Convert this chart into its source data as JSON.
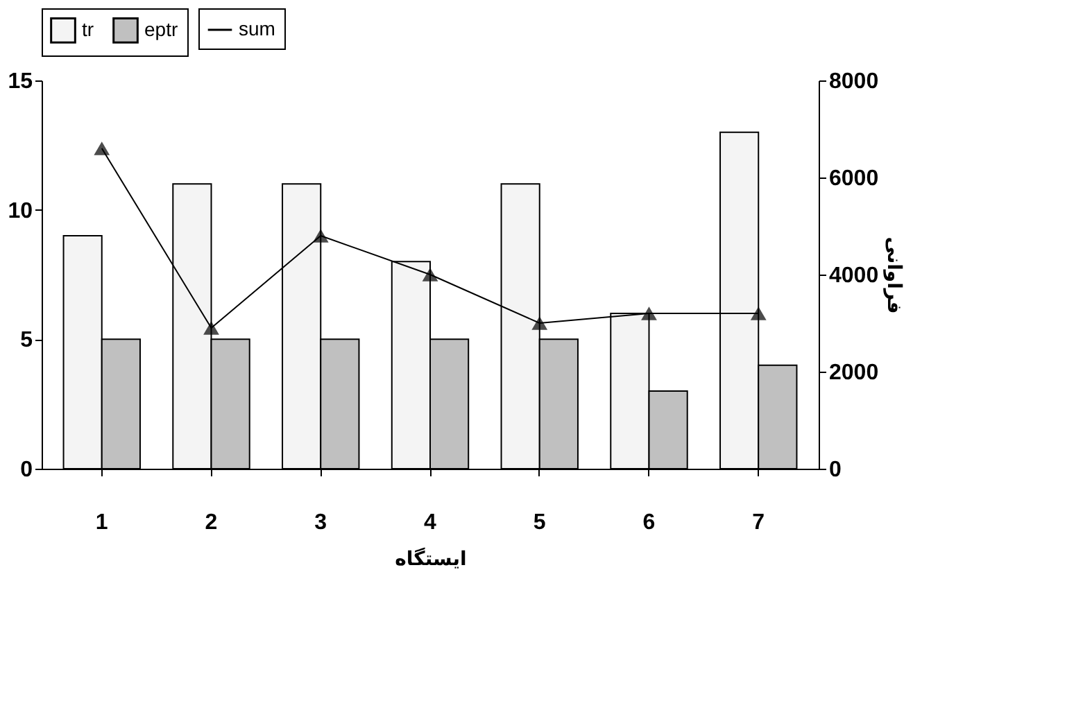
{
  "chart_data": {
    "type": "bar",
    "categories": [
      "1",
      "2",
      "3",
      "4",
      "5",
      "6",
      "7"
    ],
    "series": [
      {
        "name": "tr",
        "color": "#f4f4f4",
        "values": [
          9,
          11,
          11,
          8,
          11,
          6,
          13
        ]
      },
      {
        "name": "eptr",
        "color": "#c0c0c0",
        "values": [
          5,
          5,
          5,
          5,
          5,
          3,
          4
        ]
      },
      {
        "name": "sum",
        "type": "line",
        "axis": "y2",
        "color": "#000000",
        "values": [
          6600,
          2900,
          4800,
          4000,
          3000,
          3200,
          3200
        ]
      }
    ],
    "xlabel": "ایستگاه",
    "y2label": "فراوانی",
    "ylim": [
      0,
      15
    ],
    "yticks": [
      0,
      5,
      10,
      15
    ],
    "y2lim": [
      0,
      8000
    ],
    "y2ticks": [
      0,
      2000,
      4000,
      6000,
      8000
    ],
    "legend": "top",
    "marker": "triangle",
    "line_style": "solid"
  }
}
